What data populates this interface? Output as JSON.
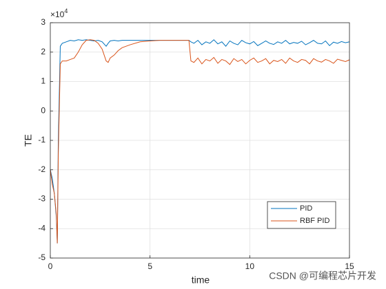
{
  "chart_data": {
    "type": "line",
    "x_label": "time",
    "y_label": "TE",
    "y_multiplier_base": "×10",
    "y_multiplier_power": "4",
    "watermark": "CSDN @可编程芯片开发",
    "grid": true,
    "legend_loc": "southeast",
    "xlim": [
      0,
      15
    ],
    "xticks": [
      0,
      5,
      10,
      15
    ],
    "ylim": [
      -5,
      3
    ],
    "yticks": [
      -5,
      -4,
      -3,
      -2,
      -1,
      0,
      1,
      2,
      3
    ],
    "x": [
      0,
      0.1,
      0.2,
      0.3,
      0.35,
      0.4,
      0.5,
      0.6,
      0.8,
      1,
      1.2,
      1.4,
      1.6,
      1.8,
      2,
      2.2,
      2.4,
      2.6,
      2.8,
      2.9,
      3,
      3.2,
      3.4,
      3.6,
      3.8,
      4,
      4.5,
      5,
      5.5,
      6,
      6.5,
      6.95,
      7.05,
      7.2,
      7.4,
      7.6,
      7.8,
      8,
      8.2,
      8.4,
      8.6,
      8.8,
      9,
      9.2,
      9.4,
      9.6,
      9.8,
      10,
      10.2,
      10.4,
      10.6,
      10.8,
      11,
      11.2,
      11.4,
      11.6,
      11.8,
      12,
      12.2,
      12.4,
      12.6,
      12.8,
      13,
      13.2,
      13.4,
      13.6,
      13.8,
      14,
      14.2,
      14.4,
      14.6,
      14.8,
      15
    ],
    "series": [
      {
        "name": "PID",
        "color": "#0072bd",
        "values": [
          -2,
          -2.3,
          -2.8,
          -3.6,
          -4.5,
          -1,
          2.2,
          2.3,
          2.35,
          2.4,
          2.38,
          2.42,
          2.4,
          2.42,
          2.4,
          2.38,
          2.4,
          2.35,
          2.2,
          2.3,
          2.38,
          2.4,
          2.38,
          2.4,
          2.4,
          2.4,
          2.4,
          2.4,
          2.4,
          2.4,
          2.4,
          2.4,
          2.35,
          2.3,
          2.4,
          2.25,
          2.35,
          2.3,
          2.42,
          2.28,
          2.35,
          2.2,
          2.38,
          2.3,
          2.25,
          2.4,
          2.32,
          2.28,
          2.36,
          2.22,
          2.3,
          2.38,
          2.3,
          2.26,
          2.35,
          2.3,
          2.4,
          2.28,
          2.33,
          2.3,
          2.37,
          2.25,
          2.32,
          2.4,
          2.3,
          2.28,
          2.38,
          2.22,
          2.34,
          2.3,
          2.36,
          2.32,
          2.35
        ]
      },
      {
        "name": "RBF PID",
        "color": "#d95319",
        "values": [
          -2,
          -2.5,
          -2.8,
          -3.5,
          -4.5,
          -1.5,
          1.6,
          1.7,
          1.7,
          1.75,
          1.8,
          2.0,
          2.25,
          2.4,
          2.42,
          2.4,
          2.3,
          2.1,
          1.7,
          1.65,
          1.8,
          1.9,
          2.05,
          2.15,
          2.2,
          2.25,
          2.35,
          2.38,
          2.4,
          2.4,
          2.4,
          2.4,
          1.7,
          1.65,
          1.8,
          1.6,
          1.75,
          1.7,
          1.82,
          1.62,
          1.75,
          1.7,
          1.58,
          1.78,
          1.68,
          1.75,
          1.6,
          1.72,
          1.8,
          1.65,
          1.7,
          1.78,
          1.6,
          1.72,
          1.68,
          1.75,
          1.62,
          1.8,
          1.7,
          1.65,
          1.75,
          1.72,
          1.6,
          1.78,
          1.7,
          1.66,
          1.75,
          1.7,
          1.62,
          1.76,
          1.72,
          1.68,
          1.74
        ]
      }
    ]
  }
}
